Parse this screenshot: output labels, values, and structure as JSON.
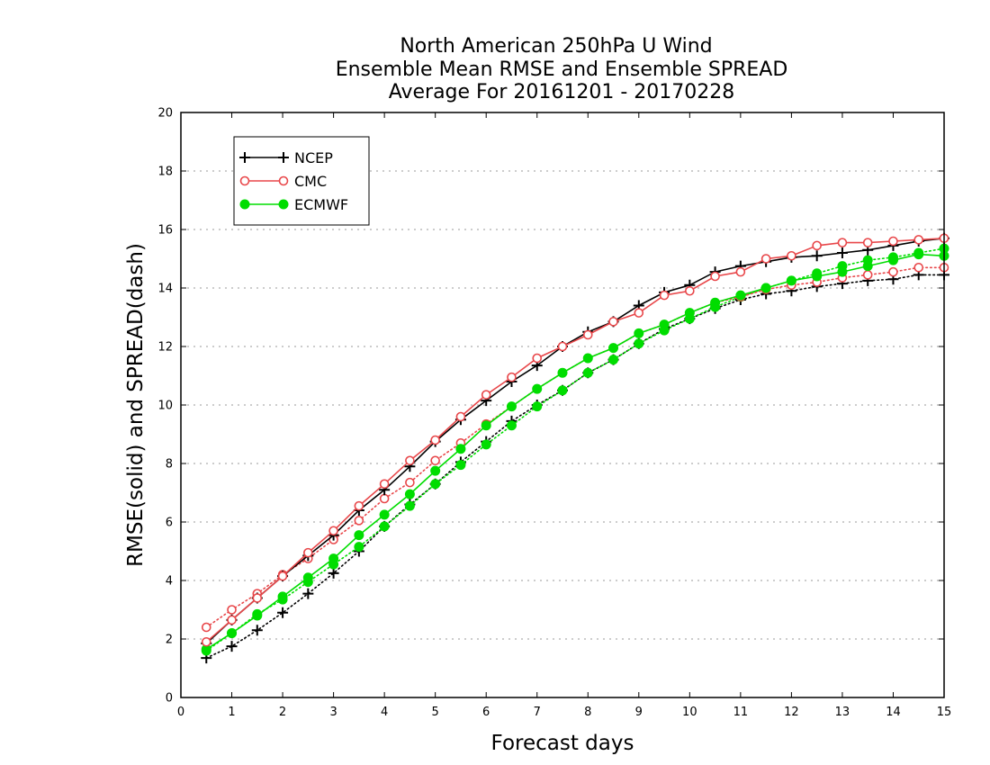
{
  "title_lines": [
    "North American 250hPa U Wind",
    "Ensemble Mean RMSE and Ensemble SPREAD",
    "Average For 20161201 - 20170228"
  ],
  "chart_data": {
    "type": "line",
    "title": "North American 250hPa U Wind / Ensemble Mean RMSE and Ensemble SPREAD / Average For 20161201 - 20170228",
    "xlabel": "Forecast days",
    "ylabel": "RMSE(solid) and SPREAD(dash)",
    "xlim": [
      0,
      15
    ],
    "ylim": [
      0,
      20
    ],
    "xticks": [
      0,
      1,
      2,
      3,
      4,
      5,
      6,
      7,
      8,
      9,
      10,
      11,
      12,
      13,
      14,
      15
    ],
    "yticks": [
      0,
      2,
      4,
      6,
      8,
      10,
      12,
      14,
      16,
      18,
      20
    ],
    "grid": "horizontal dotted",
    "legend_position": "top-left",
    "x": [
      0.5,
      1,
      1.5,
      2,
      2.5,
      3,
      3.5,
      4,
      4.5,
      5,
      5.5,
      6,
      6.5,
      7,
      7.5,
      8,
      8.5,
      9,
      9.5,
      10,
      10.5,
      11,
      11.5,
      12,
      12.5,
      13,
      13.5,
      14,
      14.5,
      15
    ],
    "series": [
      {
        "name": "NCEP",
        "metric": "RMSE",
        "line_style": "solid",
        "marker": "plus",
        "color": "#000000",
        "values": [
          1.85,
          2.65,
          3.4,
          4.15,
          4.85,
          5.55,
          6.4,
          7.1,
          7.9,
          8.75,
          9.5,
          10.15,
          10.8,
          11.35,
          12.0,
          12.5,
          12.85,
          13.4,
          13.85,
          14.1,
          14.55,
          14.75,
          14.9,
          15.05,
          15.1,
          15.2,
          15.3,
          15.45,
          15.6,
          15.7
        ]
      },
      {
        "name": "NCEP",
        "metric": "SPREAD",
        "line_style": "dotted",
        "marker": "plus",
        "color": "#000000",
        "values": [
          1.35,
          1.75,
          2.3,
          2.9,
          3.55,
          4.25,
          5.0,
          5.85,
          6.6,
          7.3,
          8.05,
          8.75,
          9.45,
          10.0,
          10.5,
          11.1,
          11.55,
          12.1,
          12.6,
          12.95,
          13.3,
          13.6,
          13.8,
          13.9,
          14.05,
          14.15,
          14.25,
          14.3,
          14.45,
          14.45
        ]
      },
      {
        "name": "CMC",
        "metric": "RMSE",
        "line_style": "solid",
        "marker": "open-circle",
        "color": "#e8474a",
        "values": [
          1.9,
          2.65,
          3.4,
          4.15,
          4.95,
          5.7,
          6.55,
          7.3,
          8.1,
          8.8,
          9.6,
          10.35,
          10.95,
          11.6,
          12.0,
          12.4,
          12.85,
          13.15,
          13.75,
          13.9,
          14.4,
          14.55,
          15.0,
          15.1,
          15.45,
          15.55,
          15.55,
          15.6,
          15.65,
          15.7
        ]
      },
      {
        "name": "CMC",
        "metric": "SPREAD",
        "line_style": "dotted",
        "marker": "open-circle",
        "color": "#e8474a",
        "values": [
          2.4,
          3.0,
          3.55,
          4.2,
          4.75,
          5.4,
          6.05,
          6.8,
          7.35,
          8.1,
          8.7,
          9.35,
          9.95,
          10.55,
          11.1,
          11.6,
          11.95,
          12.45,
          12.75,
          13.15,
          13.5,
          13.7,
          13.95,
          14.1,
          14.2,
          14.35,
          14.45,
          14.55,
          14.7,
          14.7
        ]
      },
      {
        "name": "ECMWF",
        "metric": "RMSE",
        "line_style": "solid",
        "marker": "filled-circle",
        "color": "#00dd00",
        "values": [
          1.65,
          2.2,
          2.8,
          3.45,
          4.1,
          4.75,
          5.55,
          6.25,
          6.95,
          7.75,
          8.5,
          9.3,
          9.95,
          10.55,
          11.1,
          11.6,
          11.95,
          12.45,
          12.75,
          13.15,
          13.5,
          13.75,
          14.0,
          14.25,
          14.4,
          14.55,
          14.75,
          14.95,
          15.15,
          15.1
        ]
      },
      {
        "name": "ECMWF",
        "metric": "SPREAD",
        "line_style": "dotted",
        "marker": "filled-circle",
        "color": "#00dd00",
        "values": [
          1.6,
          2.2,
          2.85,
          3.35,
          3.95,
          4.55,
          5.15,
          5.85,
          6.55,
          7.3,
          7.95,
          8.65,
          9.3,
          9.95,
          10.5,
          11.1,
          11.55,
          12.1,
          12.55,
          12.95,
          13.35,
          13.7,
          14.0,
          14.25,
          14.5,
          14.75,
          14.95,
          15.05,
          15.2,
          15.35
        ]
      }
    ],
    "legend": [
      {
        "name": "NCEP",
        "color": "#000000",
        "marker": "plus"
      },
      {
        "name": "CMC",
        "color": "#e8474a",
        "marker": "open-circle"
      },
      {
        "name": "ECMWF",
        "color": "#00dd00",
        "marker": "filled-circle"
      }
    ]
  }
}
